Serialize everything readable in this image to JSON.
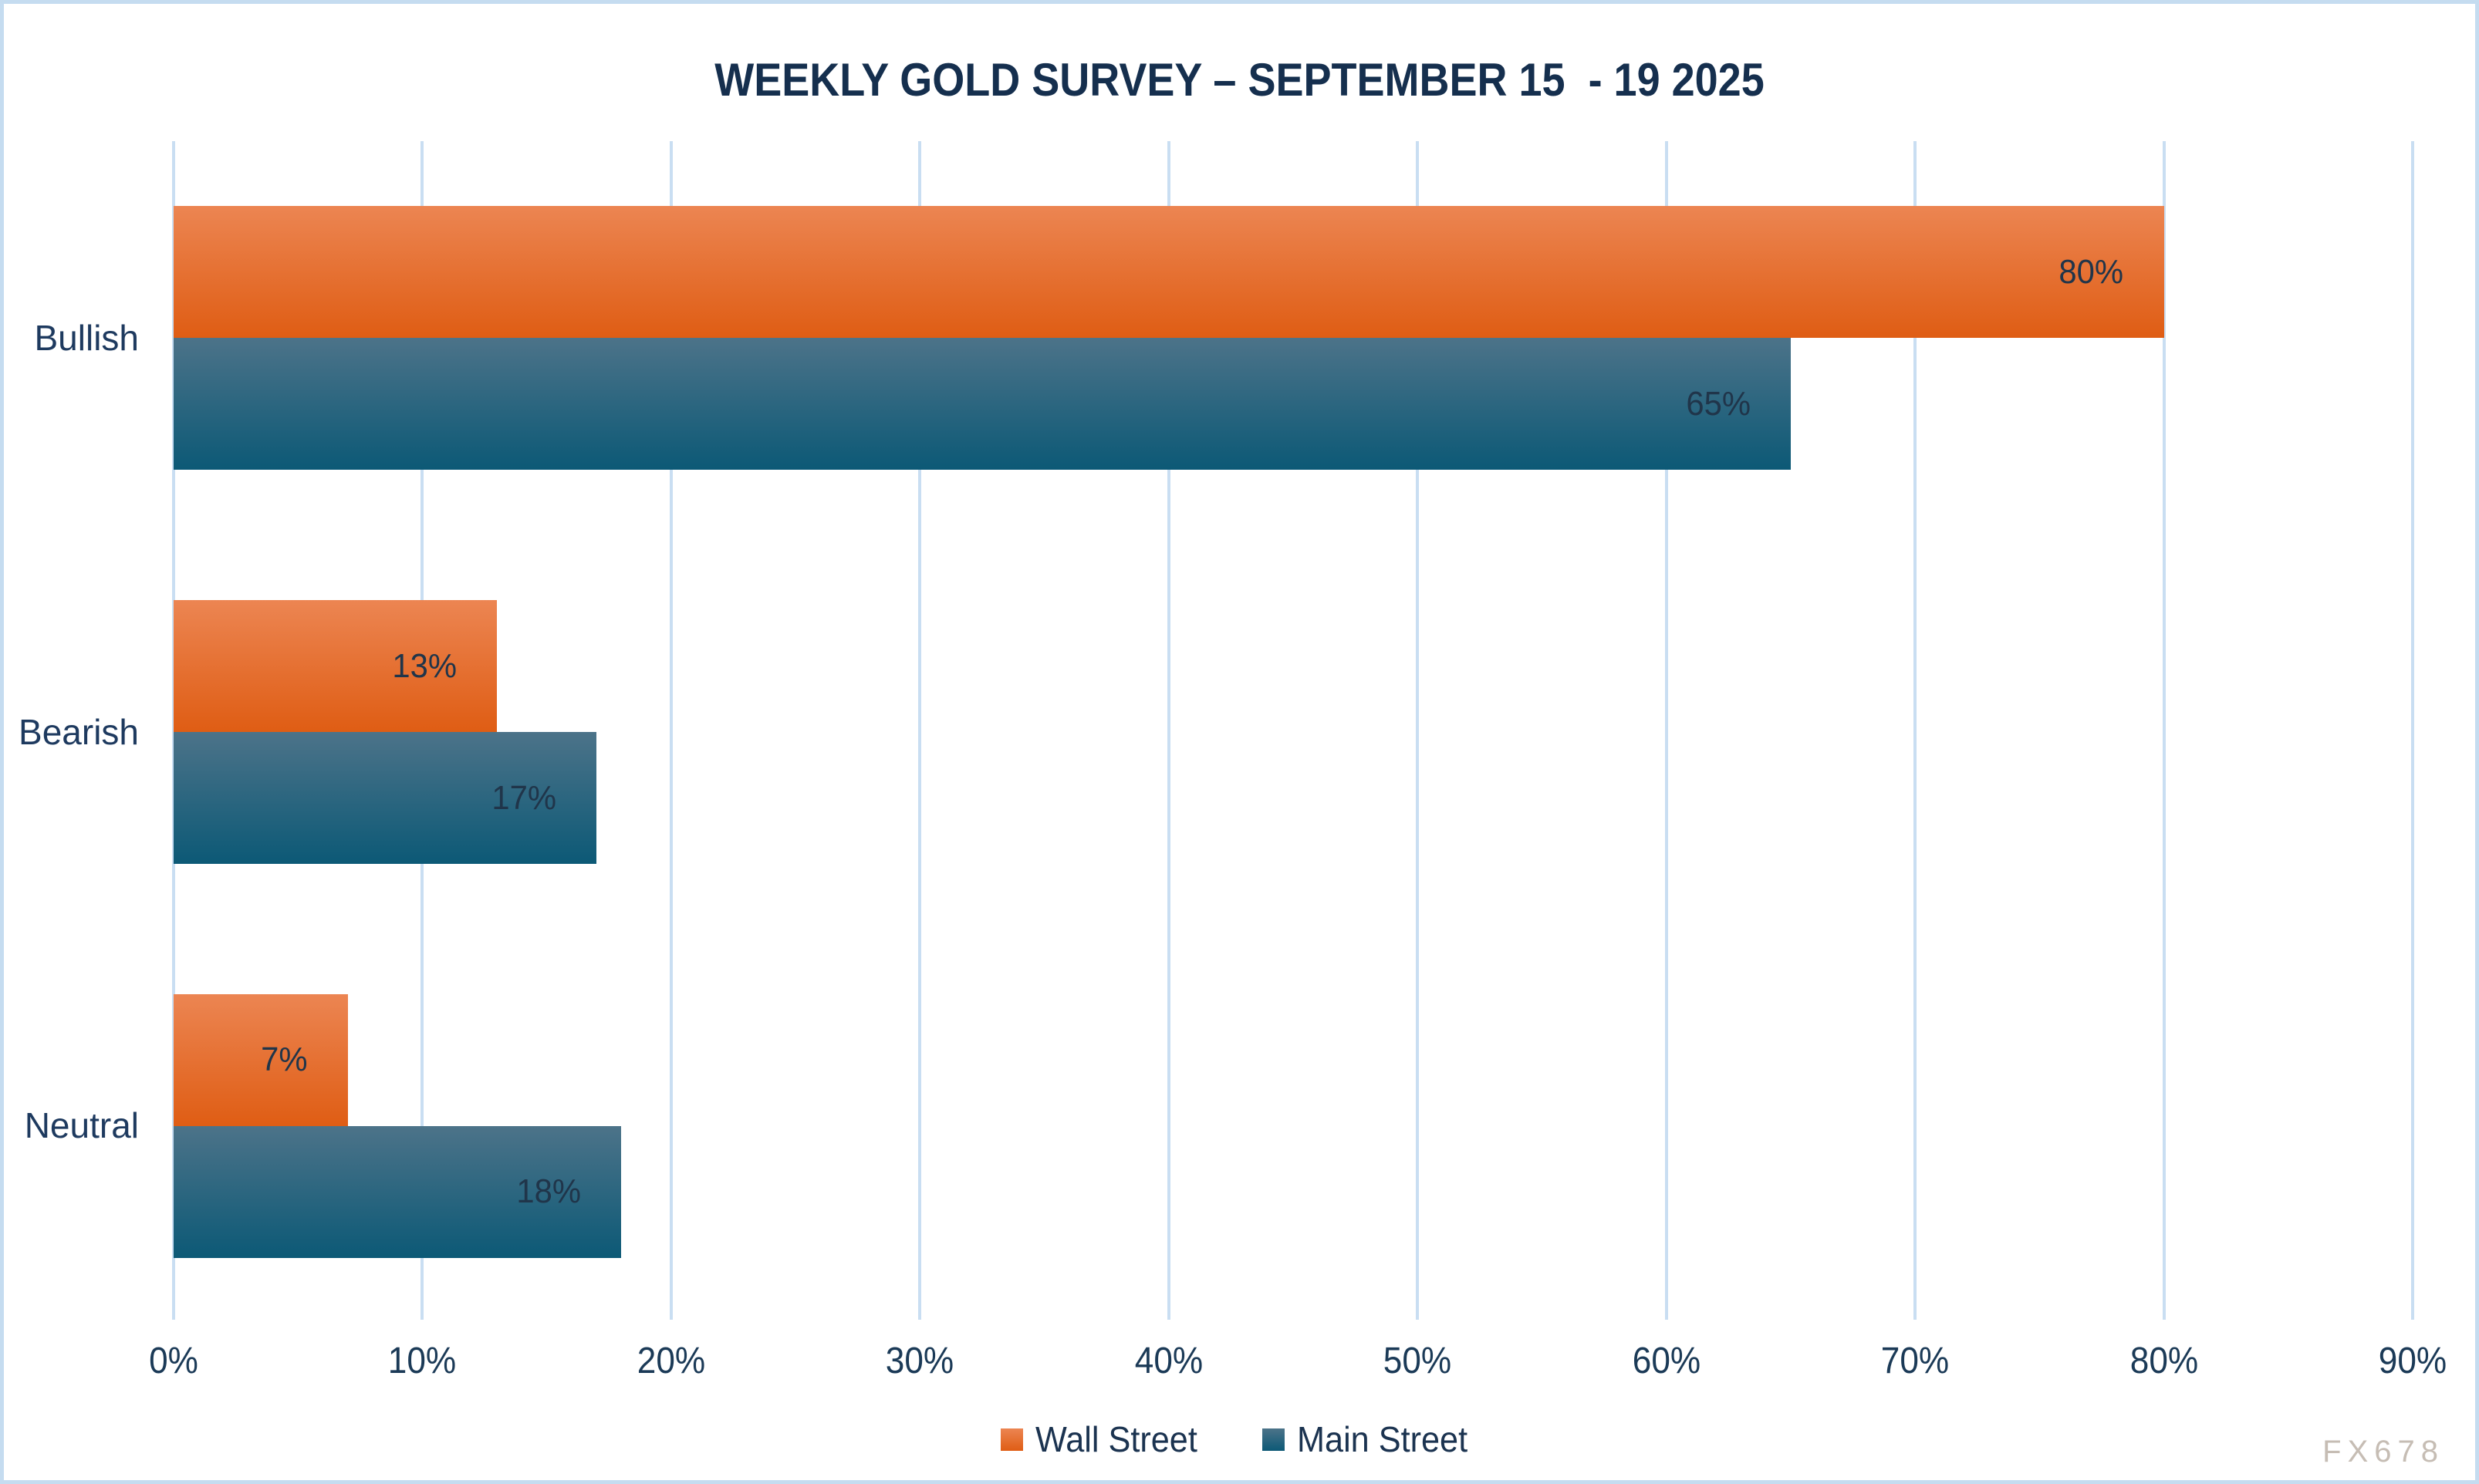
{
  "frame": {
    "background": "#FFFFFF",
    "border_color": "#C5DCF0"
  },
  "title": {
    "text": "WEEKLY GOLD SURVEY – SEPTEMBER 15  - 19 2025",
    "color": "#152F4E"
  },
  "watermark": {
    "text": "FX678",
    "color": "#C6BDB4"
  },
  "chart_data": {
    "type": "bar",
    "orientation": "horizontal",
    "title": "WEEKLY GOLD SURVEY – SEPTEMBER 15  - 19 2025",
    "categories": [
      "Bullish",
      "Bearish",
      "Neutral"
    ],
    "series": [
      {
        "name": "Wall Street",
        "values": [
          80,
          13,
          7
        ],
        "labels": [
          "80%",
          "13%",
          "7%"
        ],
        "gradient_top": "#EC8552",
        "gradient_bottom": "#DF5D14"
      },
      {
        "name": "Main Street",
        "values": [
          65,
          17,
          18
        ],
        "labels": [
          "65%",
          "17%",
          "18%"
        ],
        "gradient_top": "#4C7389",
        "gradient_bottom": "#0C5976"
      }
    ],
    "xlabel": "",
    "ylabel": "",
    "axis": {
      "min": 0,
      "max": 90,
      "tick_step": 10,
      "tick_labels": [
        "0%",
        "10%",
        "20%",
        "30%",
        "40%",
        "50%",
        "60%",
        "70%",
        "80%",
        "90%"
      ]
    },
    "grid": true,
    "gridline_color": "#C9DEF2",
    "legend_position": "bottom",
    "value_label_color": "#20354A",
    "value_label_placement": "inside-end",
    "category_label_color": "#1E3A5F",
    "tick_label_color": "#1B3A57"
  }
}
